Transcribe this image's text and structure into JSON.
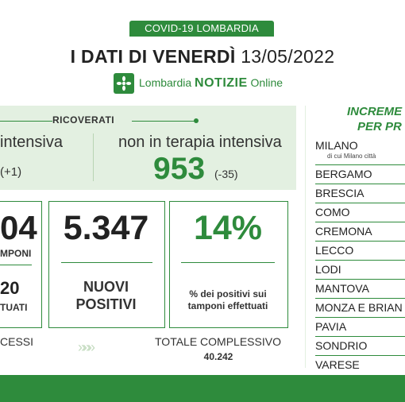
{
  "header": {
    "tag": "COVID-19 LOMBARDIA",
    "title_prefix": "I DATI DI VENERDÌ",
    "title_date": "13/05/2022",
    "logo_brand": "Lombardia",
    "logo_notizie": "NOTIZIE",
    "logo_online": "Online"
  },
  "ricoverati": {
    "label": "RICOVERATI",
    "terapia_intensiva_label": "intensiva",
    "terapia_intensiva_value": "(+1)",
    "non_ti_label": "non in terapia intensiva",
    "non_ti_value": "953",
    "non_ti_delta": "(-35)"
  },
  "boxes": {
    "tamponi_value": "04",
    "tamponi_label": "MPONI",
    "effettuati_value": "20",
    "effettuati_label": "TUATI",
    "nuovi_value": "5.347",
    "nuovi_label_1": "NUOVI",
    "nuovi_label_2": "POSITIVI",
    "perc_value": "14%",
    "perc_label_1": "% dei positivi sui",
    "perc_label_2": "tamponi effettuati"
  },
  "footer": {
    "decessi_label": "CESSI",
    "arrows": "»»»",
    "totale_label": "TOTALE COMPLESSIVO",
    "totale_value": "40.242"
  },
  "province": {
    "heading_1": "INCREME",
    "heading_2": "PER PR",
    "milano_sub": "di cui Milano città",
    "items": [
      "MILANO",
      "BERGAMO",
      "BRESCIA",
      "COMO",
      "CREMONA",
      "LECCO",
      "LODI",
      "MANTOVA",
      "MONZA E BRIAN",
      "PAVIA",
      "SONDRIO",
      "VARESE"
    ]
  },
  "colors": {
    "green": "#2e8b3c",
    "light_green": "#e3f0e1"
  }
}
